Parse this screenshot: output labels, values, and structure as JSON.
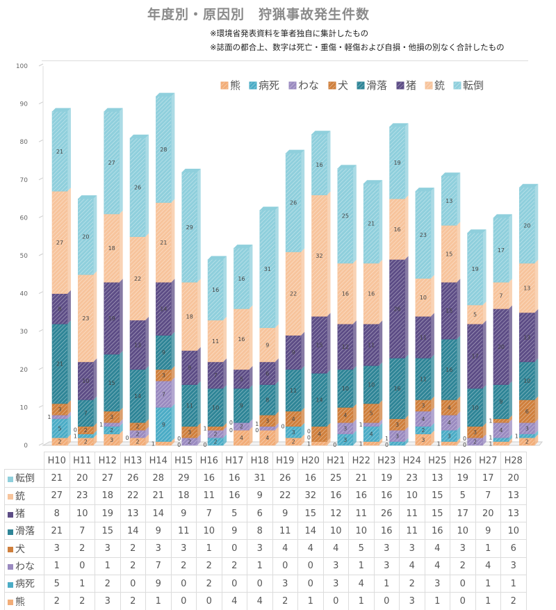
{
  "chart_data": {
    "type": "bar",
    "stacked": true,
    "title": "年度別・原因別　狩猟事故発生件数",
    "notes": [
      "※環境省発表資料を筆者独自に集計したもの",
      "※誌面の都合上、数字は死亡・重傷・軽傷および自損・他損の別なく合計したもの"
    ],
    "categories": [
      "H10",
      "H11",
      "H12",
      "H13",
      "H14",
      "H15",
      "H16",
      "H17",
      "H18",
      "H19",
      "H20",
      "H21",
      "H22",
      "H23",
      "H24",
      "H25",
      "H26",
      "H27",
      "H28"
    ],
    "ylim": [
      0,
      100
    ],
    "yticks": [
      0,
      10,
      20,
      30,
      40,
      50,
      60,
      70,
      80,
      90,
      100
    ],
    "legend_position": "top-right",
    "legend_order": [
      "熊",
      "病死",
      "わな",
      "犬",
      "滑落",
      "猪",
      "銃",
      "転倒"
    ],
    "series": [
      {
        "name": "熊",
        "color": "#f2ad78",
        "values": [
          2,
          2,
          3,
          2,
          1,
          0,
          0,
          4,
          4,
          2,
          1,
          0,
          1,
          0,
          3,
          1,
          0,
          1,
          2
        ]
      },
      {
        "name": "病死",
        "color": "#4bacc6",
        "values": [
          5,
          1,
          2,
          0,
          9,
          0,
          2,
          0,
          0,
          3,
          0,
          3,
          4,
          1,
          2,
          3,
          0,
          1,
          1
        ]
      },
      {
        "name": "わな",
        "color": "#9a8ac0",
        "values": [
          1,
          0,
          1,
          2,
          7,
          2,
          2,
          2,
          1,
          0,
          0,
          3,
          1,
          3,
          4,
          4,
          2,
          4,
          3
        ]
      },
      {
        "name": "犬",
        "color": "#cf7f3c",
        "values": [
          3,
          2,
          3,
          2,
          3,
          3,
          1,
          0,
          3,
          4,
          4,
          4,
          5,
          3,
          3,
          4,
          3,
          1,
          6
        ]
      },
      {
        "name": "滑落",
        "color": "#2f8597",
        "values": [
          21,
          7,
          15,
          14,
          9,
          11,
          10,
          9,
          8,
          11,
          14,
          10,
          10,
          16,
          11,
          16,
          10,
          9,
          10
        ]
      },
      {
        "name": "猪",
        "color": "#5d4d86",
        "values": [
          8,
          10,
          19,
          13,
          14,
          9,
          7,
          5,
          6,
          9,
          15,
          12,
          11,
          26,
          11,
          15,
          17,
          20,
          13
        ]
      },
      {
        "name": "銃",
        "color": "#f7c49c",
        "values": [
          27,
          23,
          18,
          22,
          21,
          18,
          11,
          16,
          9,
          22,
          32,
          16,
          16,
          16,
          10,
          15,
          5,
          7,
          13
        ]
      },
      {
        "name": "転倒",
        "color": "#8fcfdc",
        "values": [
          21,
          20,
          27,
          26,
          28,
          29,
          16,
          16,
          31,
          26,
          16,
          25,
          21,
          19,
          23,
          13,
          19,
          17,
          20
        ]
      }
    ],
    "table_row_order": [
      "転倒",
      "銃",
      "猪",
      "滑落",
      "犬",
      "わな",
      "病死",
      "熊"
    ],
    "grid": false
  }
}
